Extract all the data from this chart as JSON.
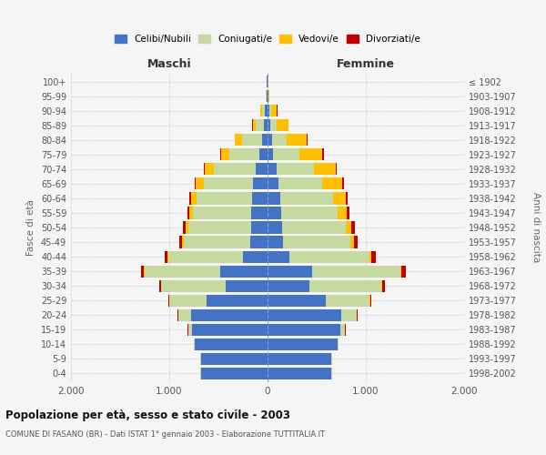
{
  "age_groups": [
    "0-4",
    "5-9",
    "10-14",
    "15-19",
    "20-24",
    "25-29",
    "30-34",
    "35-39",
    "40-44",
    "45-49",
    "50-54",
    "55-59",
    "60-64",
    "65-69",
    "70-74",
    "75-79",
    "80-84",
    "85-89",
    "90-94",
    "95-99",
    "100+"
  ],
  "birth_years": [
    "1998-2002",
    "1993-1997",
    "1988-1992",
    "1983-1987",
    "1978-1982",
    "1973-1977",
    "1968-1972",
    "1963-1967",
    "1958-1962",
    "1953-1957",
    "1948-1952",
    "1943-1947",
    "1938-1942",
    "1933-1937",
    "1928-1932",
    "1923-1927",
    "1918-1922",
    "1913-1917",
    "1908-1912",
    "1903-1907",
    "≤ 1902"
  ],
  "male_celibi": [
    680,
    680,
    740,
    770,
    780,
    620,
    430,
    480,
    250,
    175,
    170,
    165,
    160,
    150,
    120,
    80,
    60,
    40,
    30,
    10,
    5
  ],
  "male_coniugati": [
    3,
    5,
    10,
    40,
    130,
    380,
    650,
    770,
    760,
    680,
    640,
    590,
    560,
    500,
    430,
    310,
    200,
    80,
    25,
    5,
    2
  ],
  "male_vedovi": [
    0,
    0,
    0,
    0,
    1,
    2,
    3,
    5,
    10,
    15,
    25,
    40,
    55,
    80,
    90,
    80,
    70,
    30,
    15,
    2,
    0
  ],
  "male_divorziati": [
    0,
    0,
    0,
    2,
    5,
    10,
    20,
    32,
    30,
    25,
    22,
    20,
    18,
    15,
    10,
    8,
    5,
    3,
    2,
    0,
    0
  ],
  "female_celibi": [
    650,
    650,
    710,
    740,
    750,
    590,
    430,
    450,
    220,
    155,
    145,
    135,
    125,
    110,
    90,
    60,
    45,
    30,
    18,
    5,
    3
  ],
  "female_coniugati": [
    4,
    6,
    15,
    50,
    160,
    450,
    730,
    900,
    820,
    690,
    650,
    580,
    540,
    450,
    380,
    260,
    150,
    60,
    18,
    3,
    1
  ],
  "female_vedovi": [
    0,
    0,
    0,
    1,
    2,
    3,
    5,
    10,
    20,
    35,
    60,
    90,
    130,
    200,
    220,
    240,
    200,
    120,
    60,
    10,
    2
  ],
  "female_divorziati": [
    0,
    0,
    0,
    3,
    8,
    15,
    28,
    45,
    45,
    35,
    35,
    28,
    22,
    18,
    12,
    10,
    8,
    5,
    3,
    1,
    0
  ],
  "colors": {
    "celibi": "#4472c4",
    "coniugati": "#c5d9a0",
    "vedovi": "#ffc000",
    "divorziati": "#c00000"
  },
  "legend_labels": [
    "Celibi/Nubili",
    "Coniugati/e",
    "Vedovi/e",
    "Divorziati/e"
  ],
  "title": "Popolazione per età, sesso e stato civile - 2003",
  "subtitle": "COMUNE DI FASANO (BR) - Dati ISTAT 1° gennaio 2003 - Elaborazione TUTTITALIA.IT",
  "ylabel_left": "Fasce di età",
  "ylabel_right": "Anni di nascita",
  "xlabel_left": "Maschi",
  "xlabel_right": "Femmine",
  "xlim": 2000,
  "background_color": "#f5f5f5",
  "grid_color": "#cccccc"
}
